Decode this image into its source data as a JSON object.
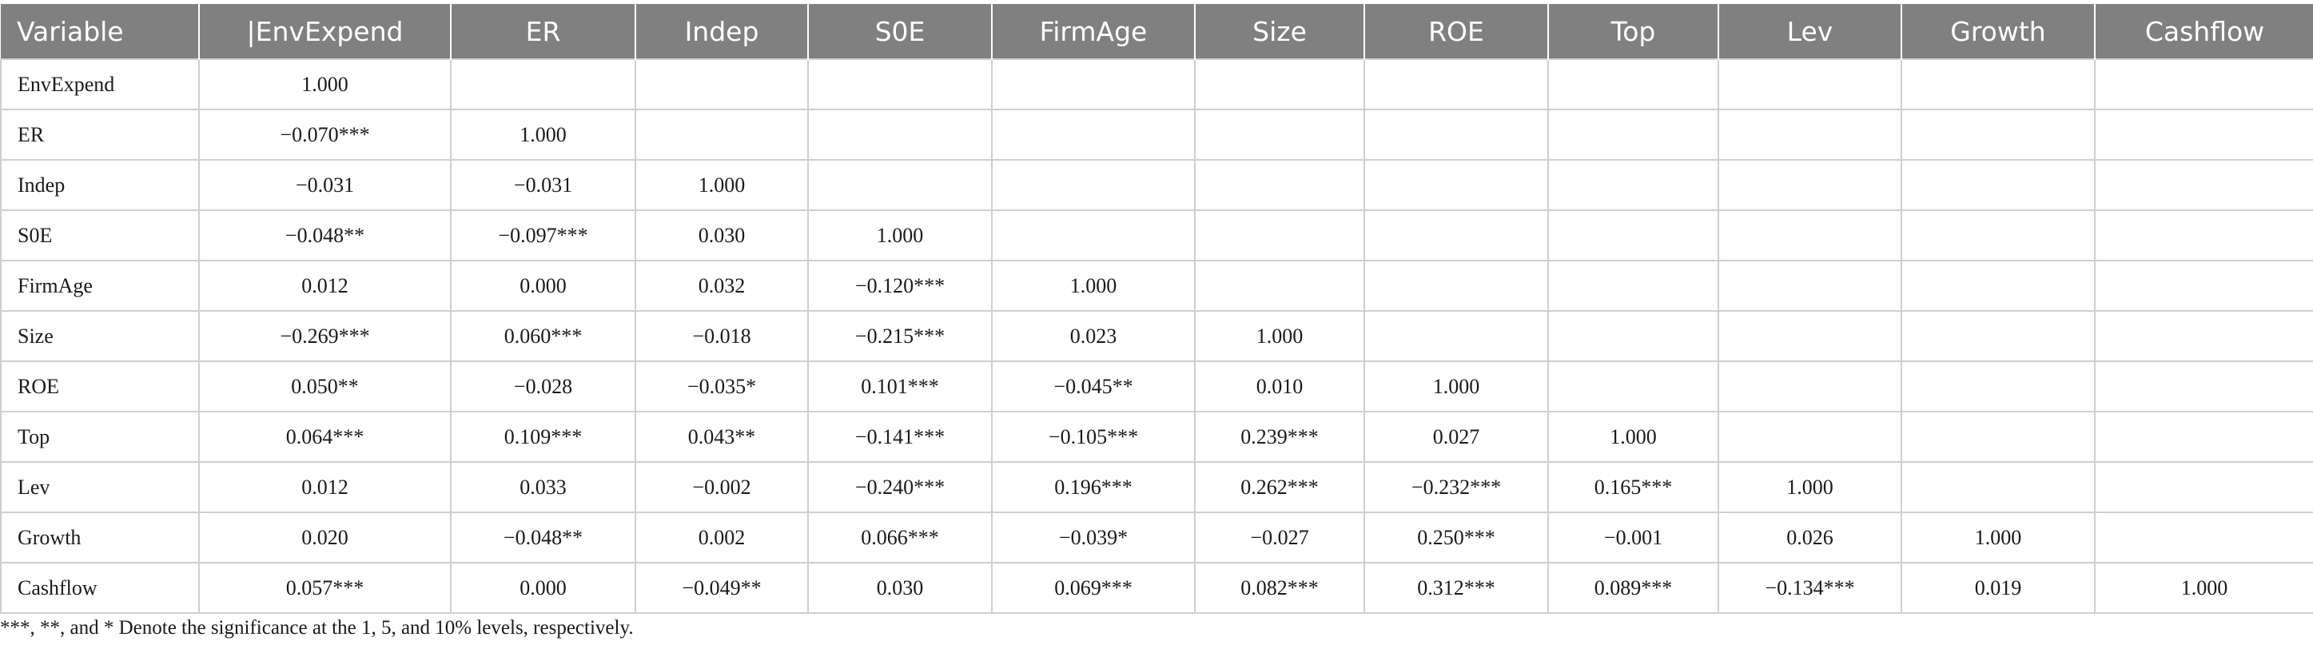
{
  "table": {
    "headers": [
      "Variable",
      "|EnvExpend",
      "ER",
      "Indep",
      "S0E",
      "FirmAge",
      "Size",
      "ROE",
      "Top",
      "Lev",
      "Growth",
      "Cashflow"
    ],
    "rows": [
      [
        "EnvExpend",
        "1.000",
        "",
        "",
        "",
        "",
        "",
        "",
        "",
        "",
        "",
        ""
      ],
      [
        "ER",
        "−0.070***",
        "1.000",
        "",
        "",
        "",
        "",
        "",
        "",
        "",
        "",
        ""
      ],
      [
        "Indep",
        "−0.031",
        "−0.031",
        "1.000",
        "",
        "",
        "",
        "",
        "",
        "",
        "",
        ""
      ],
      [
        "S0E",
        "−0.048**",
        "−0.097***",
        "0.030",
        "1.000",
        "",
        "",
        "",
        "",
        "",
        "",
        ""
      ],
      [
        "FirmAge",
        "0.012",
        "0.000",
        "0.032",
        "−0.120***",
        "1.000",
        "",
        "",
        "",
        "",
        "",
        ""
      ],
      [
        "Size",
        "−0.269***",
        "0.060***",
        "−0.018",
        "−0.215***",
        "0.023",
        "1.000",
        "",
        "",
        "",
        "",
        ""
      ],
      [
        "ROE",
        "0.050**",
        "−0.028",
        "−0.035*",
        "0.101***",
        "−0.045**",
        "0.010",
        "1.000",
        "",
        "",
        "",
        ""
      ],
      [
        "Top",
        "0.064***",
        "0.109***",
        "0.043**",
        "−0.141***",
        "−0.105***",
        "0.239***",
        "0.027",
        "1.000",
        "",
        "",
        ""
      ],
      [
        "Lev",
        "0.012",
        "0.033",
        "−0.002",
        "−0.240***",
        "0.196***",
        "0.262***",
        "−0.232***",
        "0.165***",
        "1.000",
        "",
        ""
      ],
      [
        "Growth",
        "0.020",
        "−0.048**",
        "0.002",
        "0.066***",
        "−0.039*",
        "−0.027",
        "0.250***",
        "−0.001",
        "0.026",
        "1.000",
        ""
      ],
      [
        "Cashflow",
        "0.057***",
        "0.000",
        "−0.049**",
        "0.030",
        "0.069***",
        "0.082***",
        "0.312***",
        "0.089***",
        "−0.134***",
        "0.019",
        "1.000"
      ]
    ]
  },
  "footnote": "***, **, and * Denote the significance at the 1, 5, and 10% levels, respectively.",
  "colors": {
    "header_bg": "#808080",
    "header_text": "#ffffff",
    "grid": "#cfcfcf"
  }
}
